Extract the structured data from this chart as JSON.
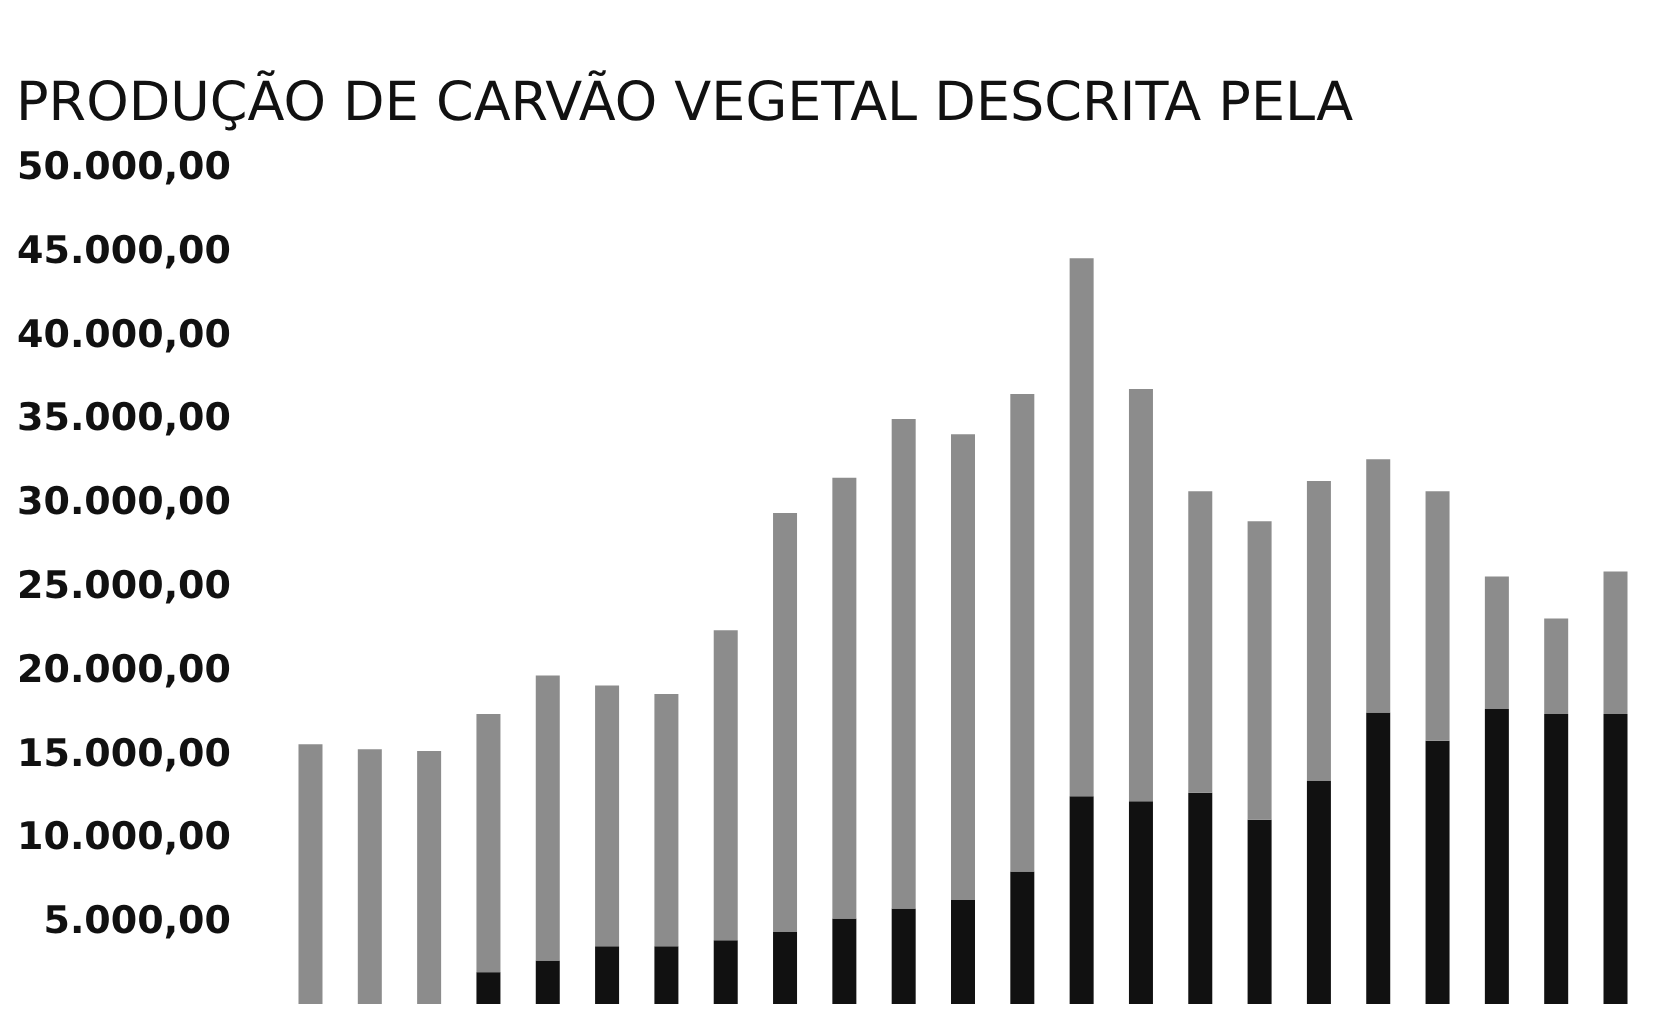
{
  "chart_data": {
    "type": "bar",
    "title": "PRODUÇÃO DE CARVÃO VEGETAL DESCRITA PELA",
    "stacked": true,
    "tick_labels": "y",
    "grid": false,
    "legend": false,
    "categories": [
      null,
      null,
      null,
      null,
      null,
      null,
      null,
      null,
      null,
      null,
      null,
      null,
      null,
      null,
      null,
      null,
      null,
      null,
      null,
      null,
      null,
      null,
      null
    ],
    "series": [
      {
        "color": "#111111",
        "values": [
          0,
          0,
          0,
          1900,
          2600,
          3450,
          3450,
          3800,
          4300,
          5100,
          5700,
          6200,
          7900,
          12400,
          12100,
          12600,
          11000,
          13300,
          17400,
          15700,
          17600,
          17300,
          17300
        ]
      },
      {
        "color": "#8c8c8c",
        "values": [
          15500,
          15200,
          15100,
          15400,
          17000,
          15550,
          15050,
          18500,
          25000,
          26300,
          29200,
          27800,
          28500,
          32100,
          24600,
          18000,
          17800,
          17900,
          15100,
          14900,
          7900,
          5700,
          8500
        ]
      }
    ],
    "ylim": [
      0,
      50000
    ],
    "yticks": [
      {
        "value": 5000,
        "label": "5.000,00"
      },
      {
        "value": 10000,
        "label": "10.000,00"
      },
      {
        "value": 15000,
        "label": "15.000,00"
      },
      {
        "value": 20000,
        "label": "20.000,00"
      },
      {
        "value": 25000,
        "label": "25.000,00"
      },
      {
        "value": 30000,
        "label": "30.000,00"
      },
      {
        "value": 35000,
        "label": "35.000,00"
      },
      {
        "value": 40000,
        "label": "40.000,00"
      },
      {
        "value": 45000,
        "label": "45.000,00"
      },
      {
        "value": 50000,
        "label": "50.000,00"
      }
    ]
  }
}
